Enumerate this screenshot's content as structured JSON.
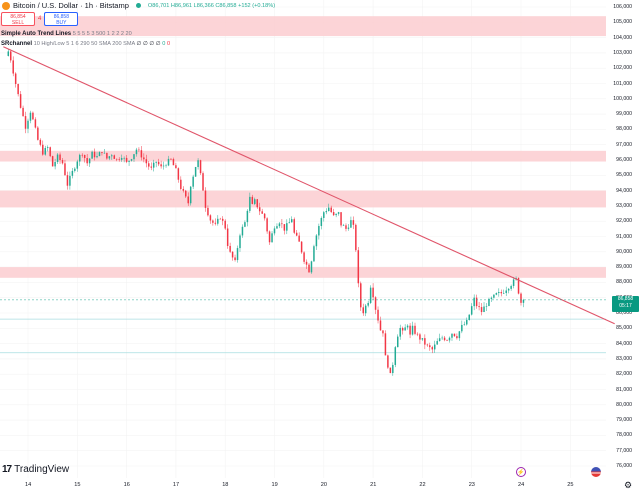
{
  "header": {
    "symbol_title": "Bitcoin / U.S. Dollar · 1h · Bitstamp",
    "ohlc": "O86,701 H86,961 L86,366 C86,858 +152 (+0.18%)",
    "sell_price": "86,854",
    "sell_label": "SELL",
    "buy_price": "86,858",
    "buy_label": "BUY",
    "spread": "4"
  },
  "indicators": [
    {
      "name": "Simple Auto Trend Lines",
      "params": "5 5 5 5 3 500 1 2 2 2 20"
    },
    {
      "name": "SRchannel",
      "params": "10 High/Low 5 1 6 290 50 SMA 200 SMA",
      "values": "∅ ∅ ∅ ∅",
      "green": "0",
      "red": "0"
    }
  ],
  "price_tag": {
    "price": "86,858",
    "countdown": "05:17"
  },
  "branding": {
    "logo_mark": "17",
    "logo_text": "TradingView"
  },
  "colors": {
    "up": "#22ab94",
    "down": "#f23645",
    "zone": "#fbccd0",
    "trendline": "#e0556a",
    "hline": "#a8dde0",
    "current_price_line": "#22ab94"
  },
  "chart_data": {
    "type": "candlestick",
    "title": "Bitcoin / U.S. Dollar · 1h · Bitstamp",
    "xlabel": "",
    "ylabel": "USD",
    "x_tick_labels": [
      "14",
      "15",
      "16",
      "17",
      "18",
      "19",
      "20",
      "21",
      "22",
      "23",
      "24",
      "25"
    ],
    "y_tick_labels": [
      "106,000",
      "105,000",
      "104,000",
      "103,000",
      "102,000",
      "101,000",
      "100,000",
      "99,000",
      "98,000",
      "97,000",
      "96,000",
      "95,000",
      "94,000",
      "93,000",
      "92,000",
      "91,000",
      "90,000",
      "89,000",
      "88,000",
      "87,000",
      "86,000",
      "85,000",
      "84,000",
      "83,000",
      "82,000",
      "81,000",
      "80,000",
      "79,000",
      "78,000",
      "77,000",
      "76,000"
    ],
    "ylim": [
      75500,
      106300
    ],
    "last_price": 86858,
    "sr_zones": [
      {
        "low": 104100,
        "high": 105400
      },
      {
        "low": 95900,
        "high": 96600
      },
      {
        "low": 92900,
        "high": 94000
      },
      {
        "low": 88300,
        "high": 89000
      }
    ],
    "horizontal_lines": [
      85600,
      83400
    ],
    "trendline": {
      "start": {
        "day": 13.5,
        "price": 103400
      },
      "end": {
        "day": 25.9,
        "price": 85300
      }
    },
    "waypoints_note": "hourly close path (day offset, price)",
    "path": [
      [
        13.55,
        102800
      ],
      [
        13.6,
        103100
      ],
      [
        13.65,
        102600
      ],
      [
        13.75,
        101000
      ],
      [
        13.85,
        99500
      ],
      [
        13.95,
        98200
      ],
      [
        14.05,
        99200
      ],
      [
        14.1,
        98600
      ],
      [
        14.2,
        97300
      ],
      [
        14.3,
        96500
      ],
      [
        14.4,
        96800
      ],
      [
        14.5,
        95600
      ],
      [
        14.6,
        96200
      ],
      [
        14.7,
        95800
      ],
      [
        14.8,
        94400
      ],
      [
        14.9,
        95200
      ],
      [
        15.0,
        96000
      ],
      [
        15.1,
        96500
      ],
      [
        15.2,
        95800
      ],
      [
        15.3,
        96400
      ],
      [
        15.4,
        96200
      ],
      [
        15.5,
        96600
      ],
      [
        15.6,
        96100
      ],
      [
        15.7,
        96400
      ],
      [
        15.8,
        96000
      ],
      [
        15.9,
        96300
      ],
      [
        16.0,
        95800
      ],
      [
        16.1,
        96200
      ],
      [
        16.2,
        96700
      ],
      [
        16.3,
        96300
      ],
      [
        16.4,
        95800
      ],
      [
        16.5,
        95400
      ],
      [
        16.6,
        95900
      ],
      [
        16.7,
        95500
      ],
      [
        16.8,
        95800
      ],
      [
        16.9,
        96000
      ],
      [
        17.0,
        95300
      ],
      [
        17.1,
        94200
      ],
      [
        17.2,
        93500
      ],
      [
        17.25,
        93200
      ],
      [
        17.3,
        94400
      ],
      [
        17.4,
        95600
      ],
      [
        17.45,
        95900
      ],
      [
        17.5,
        95000
      ],
      [
        17.55,
        94100
      ],
      [
        17.6,
        93000
      ],
      [
        17.7,
        92100
      ],
      [
        17.8,
        91700
      ],
      [
        17.9,
        92300
      ],
      [
        18.0,
        91600
      ],
      [
        18.05,
        90500
      ],
      [
        18.1,
        89900
      ],
      [
        18.2,
        89300
      ],
      [
        18.25,
        90300
      ],
      [
        18.3,
        91200
      ],
      [
        18.4,
        91900
      ],
      [
        18.45,
        92800
      ],
      [
        18.5,
        93500
      ],
      [
        18.55,
        93000
      ],
      [
        18.6,
        93300
      ],
      [
        18.7,
        92700
      ],
      [
        18.8,
        92200
      ],
      [
        18.85,
        91400
      ],
      [
        18.9,
        90600
      ],
      [
        19.0,
        91700
      ],
      [
        19.1,
        92000
      ],
      [
        19.2,
        91500
      ],
      [
        19.3,
        91900
      ],
      [
        19.35,
        92200
      ],
      [
        19.4,
        91200
      ],
      [
        19.5,
        90600
      ],
      [
        19.6,
        89500
      ],
      [
        19.7,
        88800
      ],
      [
        19.75,
        89500
      ],
      [
        19.8,
        90500
      ],
      [
        19.9,
        91700
      ],
      [
        20.0,
        92600
      ],
      [
        20.1,
        92900
      ],
      [
        20.2,
        92300
      ],
      [
        20.3,
        92500
      ],
      [
        20.35,
        91800
      ],
      [
        20.45,
        91500
      ],
      [
        20.55,
        92000
      ],
      [
        20.6,
        91600
      ],
      [
        20.65,
        90200
      ],
      [
        20.7,
        87800
      ],
      [
        20.75,
        86400
      ],
      [
        20.8,
        86100
      ],
      [
        20.9,
        86800
      ],
      [
        20.95,
        87800
      ],
      [
        21.0,
        87200
      ],
      [
        21.05,
        86300
      ],
      [
        21.1,
        85600
      ],
      [
        21.15,
        84900
      ],
      [
        21.2,
        84800
      ],
      [
        21.25,
        83100
      ],
      [
        21.3,
        82600
      ],
      [
        21.35,
        81900
      ],
      [
        21.4,
        82700
      ],
      [
        21.45,
        83900
      ],
      [
        21.5,
        84600
      ],
      [
        21.55,
        85000
      ],
      [
        21.6,
        84700
      ],
      [
        21.7,
        85300
      ],
      [
        21.75,
        84500
      ],
      [
        21.8,
        85000
      ],
      [
        21.9,
        84500
      ],
      [
        22.0,
        84200
      ],
      [
        22.1,
        83800
      ],
      [
        22.2,
        83600
      ],
      [
        22.3,
        84100
      ],
      [
        22.4,
        84400
      ],
      [
        22.5,
        84300
      ],
      [
        22.6,
        84700
      ],
      [
        22.7,
        84500
      ],
      [
        22.8,
        85100
      ],
      [
        22.9,
        85400
      ],
      [
        23.0,
        86400
      ],
      [
        23.05,
        86900
      ],
      [
        23.1,
        86500
      ],
      [
        23.2,
        86100
      ],
      [
        23.3,
        86600
      ],
      [
        23.4,
        86900
      ],
      [
        23.5,
        87200
      ],
      [
        23.6,
        87300
      ],
      [
        23.7,
        87600
      ],
      [
        23.8,
        87900
      ],
      [
        23.9,
        88200
      ],
      [
        23.95,
        87400
      ],
      [
        24.0,
        86700
      ],
      [
        24.05,
        86858
      ]
    ]
  }
}
